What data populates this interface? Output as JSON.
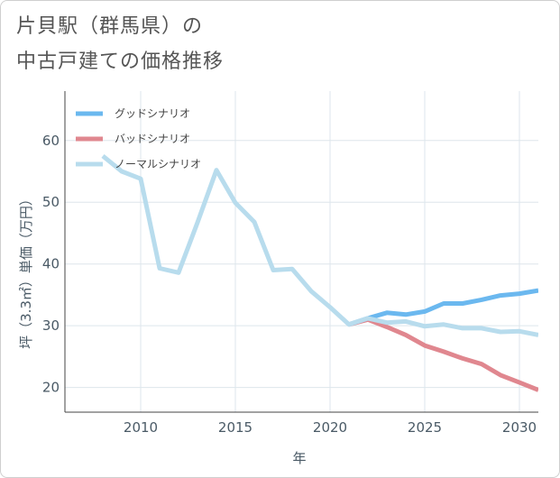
{
  "chart_data": {
    "type": "line",
    "title_line1": "片貝駅（群馬県）の",
    "title_line2": "中古戸建ての価格推移",
    "xlabel": "年",
    "ylabel": "坪（3.3㎡）単価（万円）",
    "xlim": [
      2006,
      2031
    ],
    "ylim": [
      16,
      68
    ],
    "x_ticks": [
      2010,
      2015,
      2020,
      2025,
      2030
    ],
    "y_ticks": [
      20,
      30,
      40,
      50,
      60
    ],
    "grid": true,
    "legend_position": "top-left",
    "series": [
      {
        "name": "グッドシナリオ",
        "color": "#6bb8ef",
        "x": [
          2021,
          2022,
          2023,
          2024,
          2025,
          2026,
          2027,
          2028,
          2029,
          2030,
          2031
        ],
        "values": [
          30.2,
          31.2,
          32.1,
          31.8,
          32.3,
          33.6,
          33.6,
          34.2,
          34.9,
          35.2,
          35.7
        ]
      },
      {
        "name": "バッドシナリオ",
        "color": "#e0878f",
        "x": [
          2021,
          2022,
          2023,
          2024,
          2025,
          2026,
          2027,
          2028,
          2029,
          2030,
          2031
        ],
        "values": [
          30.2,
          31.0,
          29.8,
          28.5,
          26.8,
          25.8,
          24.7,
          23.8,
          22.0,
          20.8,
          19.6
        ]
      },
      {
        "name": "ノーマルシナリオ",
        "color": "#b8dced",
        "x": [
          2008,
          2009,
          2010,
          2011,
          2012,
          2013,
          2014,
          2015,
          2016,
          2017,
          2018,
          2019,
          2020,
          2021,
          2022,
          2023,
          2024,
          2025,
          2026,
          2027,
          2028,
          2029,
          2030,
          2031
        ],
        "values": [
          57.5,
          55.0,
          53.8,
          39.3,
          38.6,
          46.7,
          55.2,
          49.9,
          46.8,
          39.0,
          39.2,
          35.6,
          33.0,
          30.2,
          31.2,
          30.5,
          30.7,
          29.9,
          30.2,
          29.6,
          29.6,
          29.0,
          29.1,
          28.5
        ]
      }
    ]
  }
}
